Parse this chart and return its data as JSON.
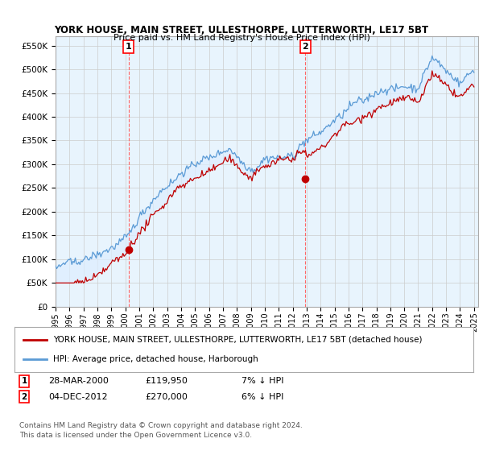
{
  "title": "YORK HOUSE, MAIN STREET, ULLESTHORPE, LUTTERWORTH, LE17 5BT",
  "subtitle": "Price paid vs. HM Land Registry's House Price Index (HPI)",
  "ylabel_ticks": [
    "£0",
    "£50K",
    "£100K",
    "£150K",
    "£200K",
    "£250K",
    "£300K",
    "£350K",
    "£400K",
    "£450K",
    "£500K",
    "£550K"
  ],
  "ytick_values": [
    0,
    50000,
    100000,
    150000,
    200000,
    250000,
    300000,
    350000,
    400000,
    450000,
    500000,
    550000
  ],
  "ylim": [
    0,
    570000
  ],
  "xlim_start": 1995.0,
  "xlim_end": 2025.3,
  "xtick_years": [
    "1995",
    "1996",
    "1997",
    "1998",
    "1999",
    "2000",
    "2001",
    "2002",
    "2003",
    "2004",
    "2005",
    "2006",
    "2007",
    "2008",
    "2009",
    "2010",
    "2011",
    "2012",
    "2013",
    "2014",
    "2015",
    "2016",
    "2017",
    "2018",
    "2019",
    "2020",
    "2021",
    "2022",
    "2023",
    "2024",
    "2025"
  ],
  "sale1_year": 2000.23,
  "sale1_price": 119950,
  "sale1_label": "1",
  "sale1_date": "28-MAR-2000",
  "sale1_hpi_diff": "7% ↓ HPI",
  "sale2_year": 2012.92,
  "sale2_price": 270000,
  "sale2_label": "2",
  "sale2_date": "04-DEC-2012",
  "sale2_hpi_diff": "6% ↓ HPI",
  "hpi_color": "#5b9bd5",
  "price_color": "#c00000",
  "fill_color": "#ddeeff",
  "legend_label_price": "YORK HOUSE, MAIN STREET, ULLESTHORPE, LUTTERWORTH, LE17 5BT (detached house)",
  "legend_label_hpi": "HPI: Average price, detached house, Harborough",
  "footnote": "Contains HM Land Registry data © Crown copyright and database right 2024.\nThis data is licensed under the Open Government Licence v3.0.",
  "bg_color": "#ffffff",
  "grid_color": "#cccccc",
  "vline_color": "#ff6666"
}
